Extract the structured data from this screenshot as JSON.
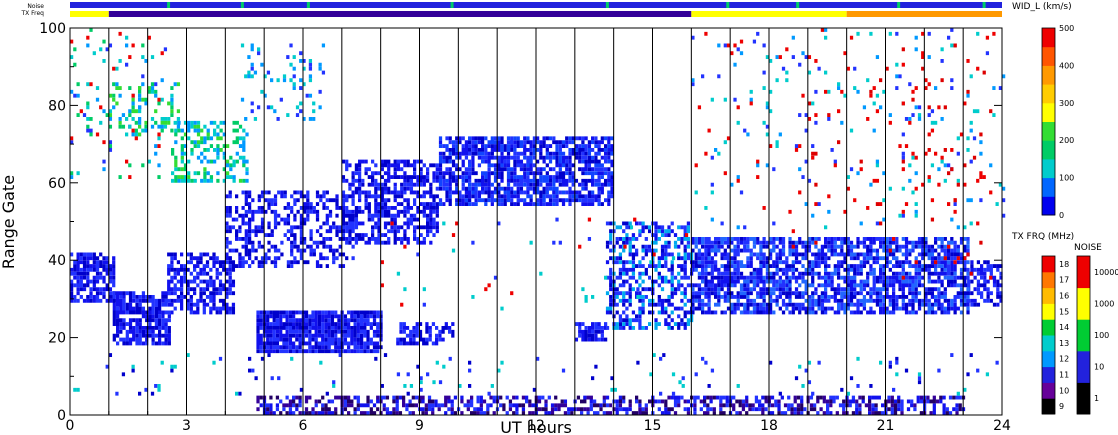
{
  "chart_data": {
    "type": "heatmap",
    "title": "",
    "xlabel": "UT hours",
    "ylabel": "Range Gate",
    "xlim": [
      0,
      24
    ],
    "ylim": [
      0,
      100
    ],
    "x_ticks": [
      "0",
      "3",
      "6",
      "9",
      "12",
      "15",
      "18",
      "21",
      "24"
    ],
    "y_ticks": [
      "0",
      "20",
      "40",
      "60",
      "80",
      "100"
    ],
    "vertical_lines_hours": [
      1,
      2,
      3,
      4,
      5,
      6,
      7,
      8,
      9,
      10,
      11,
      12,
      13,
      14,
      15,
      16,
      17,
      18,
      19,
      20,
      21,
      22,
      23
    ],
    "status_bars": {
      "noise_label": "Noise",
      "txfreq_label": "TX Freq",
      "noise_color": "#2222dd",
      "noise_green_hours": [
        2.5,
        4.4,
        6.1,
        9.8,
        13.8,
        16.9,
        18.7,
        21.3,
        23.5
      ],
      "txfreq_segments": [
        {
          "from": 0,
          "to": 1,
          "color": "#ffff00"
        },
        {
          "from": 1,
          "to": 16,
          "color": "#330099"
        },
        {
          "from": 16,
          "to": 20,
          "color": "#ffff00"
        },
        {
          "from": 20,
          "to": 24,
          "color": "#ff9900"
        }
      ]
    },
    "scatter_regions": [
      {
        "name": "band-early",
        "x": [
          0,
          1.1
        ],
        "y": [
          29,
          42
        ],
        "density": 0.75,
        "colors": [
          "#1111ee",
          "#2233ff",
          "#0000cc"
        ]
      },
      {
        "name": "dip-1-2",
        "x": [
          1.1,
          2.6
        ],
        "y": [
          18,
          32
        ],
        "density": 0.8,
        "colors": [
          "#1111ee",
          "#2233ff",
          "#0000cc"
        ]
      },
      {
        "name": "rise-2-4",
        "x": [
          2.5,
          4.2
        ],
        "y": [
          26,
          42
        ],
        "density": 0.6,
        "colors": [
          "#1111ee",
          "#2233ff",
          "#0000cc"
        ]
      },
      {
        "name": "ramp-4-7",
        "x": [
          4.0,
          7.3
        ],
        "y": [
          38,
          58
        ],
        "density": 0.45,
        "colors": [
          "#1111ee",
          "#2233ff",
          "#0000cc"
        ]
      },
      {
        "name": "mid-7-9",
        "x": [
          7.0,
          9.5
        ],
        "y": [
          44,
          66
        ],
        "density": 0.6,
        "colors": [
          "#1111ee",
          "#2233ff",
          "#0000cc"
        ]
      },
      {
        "name": "upper-9-14",
        "x": [
          9.5,
          14.0
        ],
        "y": [
          54,
          72
        ],
        "density": 0.75,
        "colors": [
          "#1111ee",
          "#2233ff",
          "#0000cc",
          "#1144ff"
        ]
      },
      {
        "name": "descent-14-16",
        "x": [
          13.8,
          16.0
        ],
        "y": [
          22,
          50
        ],
        "density": 0.5,
        "colors": [
          "#1111ee",
          "#2233ff",
          "#0000cc",
          "#00aaee"
        ]
      },
      {
        "name": "band-16-23",
        "x": [
          16.0,
          23.1
        ],
        "y": [
          26,
          46
        ],
        "density": 0.72,
        "colors": [
          "#1111ee",
          "#2233ff",
          "#0000cc",
          "#2266ff"
        ]
      },
      {
        "name": "band-late",
        "x": [
          23.1,
          24
        ],
        "y": [
          28,
          40
        ],
        "density": 0.6,
        "colors": [
          "#1111ee",
          "#2233ff",
          "#0000cc"
        ]
      },
      {
        "name": "block-20",
        "x": [
          4.8,
          8.0
        ],
        "y": [
          16,
          27
        ],
        "density": 0.9,
        "colors": [
          "#1111ee",
          "#2233ff",
          "#0000cc"
        ]
      },
      {
        "name": "block-20b",
        "x": [
          8.4,
          9.9
        ],
        "y": [
          18,
          24
        ],
        "density": 0.6,
        "colors": [
          "#1111ee",
          "#2233ff",
          "#0000cc"
        ]
      },
      {
        "name": "block-20c",
        "x": [
          13.0,
          13.8
        ],
        "y": [
          19,
          24
        ],
        "density": 0.7,
        "colors": [
          "#1111ee",
          "#2233ff",
          "#0000cc"
        ]
      },
      {
        "name": "ground-scatter",
        "x": [
          4.8,
          23.0
        ],
        "y": [
          0,
          5
        ],
        "density": 0.55,
        "colors": [
          "#1111ee",
          "#330099",
          "#2233ff",
          "#220066"
        ]
      },
      {
        "name": "green-patch-a",
        "x": [
          2.6,
          4.6
        ],
        "y": [
          60,
          76
        ],
        "density": 0.45,
        "colors": [
          "#00cc66",
          "#00cccc",
          "#33dd33",
          "#0099ff"
        ]
      },
      {
        "name": "green-patch-b",
        "x": [
          1.0,
          2.8
        ],
        "y": [
          72,
          86
        ],
        "density": 0.25,
        "colors": [
          "#00cc66",
          "#00cccc",
          "#33dd33",
          "#0099ff"
        ]
      },
      {
        "name": "hf-streak",
        "x": [
          4.4,
          6.5
        ],
        "y": [
          76,
          96
        ],
        "density": 0.12,
        "colors": [
          "#00cccc",
          "#0099ff",
          "#2233ff"
        ]
      },
      {
        "name": "sparse-upper-left",
        "x": [
          0,
          2.5
        ],
        "y": [
          60,
          100
        ],
        "density": 0.08,
        "colors": [
          "#00cccc",
          "#0099ff",
          "#2233ff",
          "#00cc66",
          "#ee0000"
        ]
      },
      {
        "name": "sparse-upper-right",
        "x": [
          16,
          24
        ],
        "y": [
          48,
          100
        ],
        "density": 0.05,
        "colors": [
          "#2233ff",
          "#0099ff",
          "#ee0000",
          "#00cccc"
        ]
      },
      {
        "name": "sparse-lower",
        "x": [
          0,
          24
        ],
        "y": [
          5,
          16
        ],
        "density": 0.03,
        "colors": [
          "#2233ff",
          "#0000cc",
          "#00cccc"
        ]
      },
      {
        "name": "sparse-mid",
        "x": [
          8,
          16
        ],
        "y": [
          25,
          52
        ],
        "density": 0.02,
        "colors": [
          "#2233ff",
          "#ee0000",
          "#00cccc"
        ]
      },
      {
        "name": "red-speckles",
        "x": [
          18.5,
          23.8
        ],
        "y": [
          35,
          100
        ],
        "density": 0.02,
        "colors": [
          "#ee0000",
          "#dd0000"
        ]
      }
    ],
    "colorbar_width": {
      "label": "WID_L (km/s)",
      "ticks": [
        "0",
        "100",
        "200",
        "300",
        "400",
        "500"
      ],
      "colors": [
        "#0000ee",
        "#0066ff",
        "#00cccc",
        "#00cc66",
        "#33dd33",
        "#ffff00",
        "#ffcc00",
        "#ff9900",
        "#ff5500",
        "#ee0000"
      ]
    },
    "colorbar_txfreq": {
      "label": "TX FRQ (MHz)",
      "ticks": [
        "9",
        "10",
        "11",
        "12",
        "13",
        "14",
        "15",
        "16",
        "17",
        "18"
      ],
      "colors": [
        "#000000",
        "#660099",
        "#2222dd",
        "#0099ff",
        "#00cccc",
        "#00cc33",
        "#ffff00",
        "#ffbb00",
        "#ff7700",
        "#ee0000"
      ]
    },
    "colorbar_noise": {
      "label": "NOISE",
      "ticks": [
        "1",
        "10",
        "100",
        "1000",
        "10000"
      ],
      "colors": [
        "#000000",
        "#2222dd",
        "#00cc33",
        "#ffff00",
        "#ee0000"
      ]
    }
  }
}
